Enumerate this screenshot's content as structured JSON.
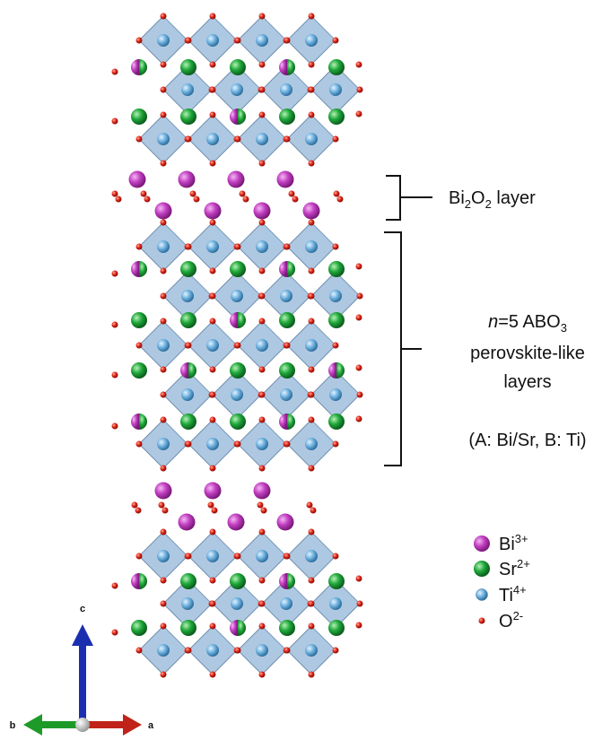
{
  "bi2o2_label": [
    "Bi",
    "2",
    "O",
    "2",
    " layer"
  ],
  "perovskite_label": {
    "line1": [
      "n",
      "=5 ABO",
      "3"
    ],
    "line2": "perovskite-like",
    "line3": "layers",
    "line4": "(A: Bi/Sr, B: Ti)"
  },
  "legend": [
    {
      "ion": "Bi",
      "charge": "3+"
    },
    {
      "ion": "Sr",
      "charge": "2+"
    },
    {
      "ion": "Ti",
      "charge": "4+"
    },
    {
      "ion": "O",
      "charge": "2-"
    }
  ],
  "axes": {
    "c": "c",
    "b": "b",
    "a": "a"
  }
}
